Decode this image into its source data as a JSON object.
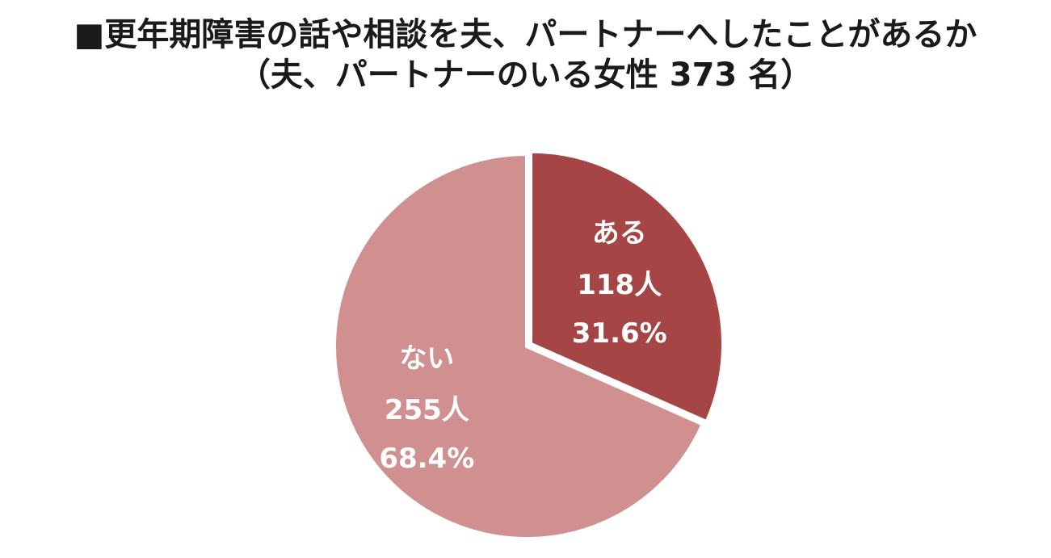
{
  "title": {
    "line1": "■更年期障害の話や相談を夫、パートナーへしたことがあるか",
    "line2": "（夫、パートナーのいる女性 373 名）"
  },
  "chart_data": {
    "type": "pie",
    "total": 373,
    "slices": [
      {
        "name": "ある",
        "count": 118,
        "count_label": "118人",
        "percent": 31.6,
        "percent_label": "31.6%",
        "color": "#a54545"
      },
      {
        "name": "ない",
        "count": 255,
        "count_label": "255人",
        "percent": 68.4,
        "percent_label": "68.4%",
        "color": "#d09090"
      }
    ],
    "start_angle": "12 o'clock",
    "direction": "clockwise",
    "legend": "none"
  }
}
